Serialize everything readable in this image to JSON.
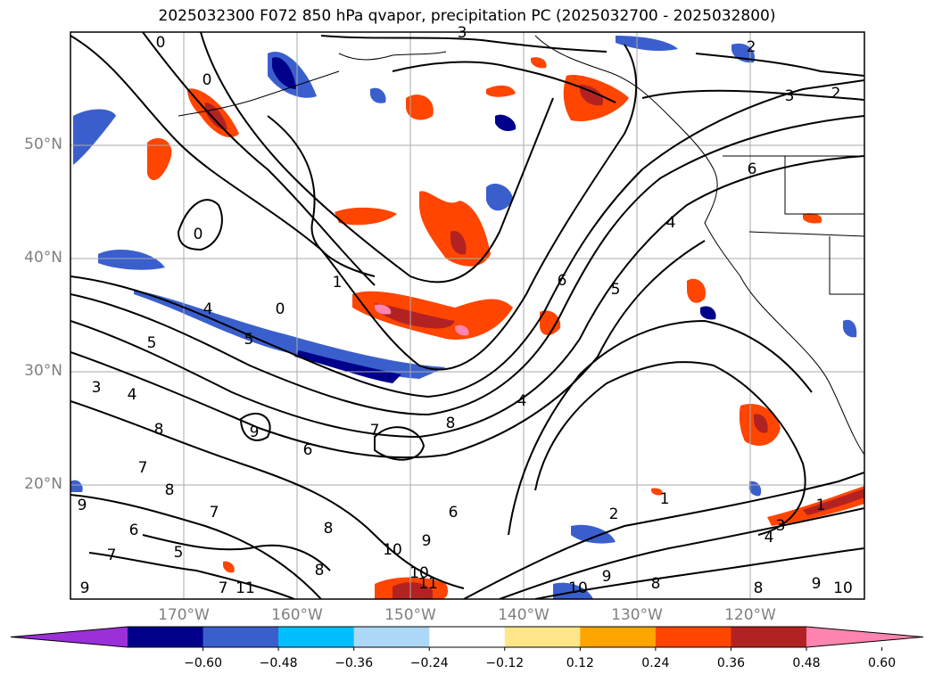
{
  "title": "2025032300 F072 850 hPa qvapor, precipitation PC (2025032700 - 2025032800)",
  "lat_labels": [
    "50°N",
    "40°N",
    "30°N",
    "20°N"
  ],
  "lon_labels": [
    "170°W",
    "160°W",
    "150°W",
    "140°W",
    "130°W",
    "120°W"
  ],
  "colorbar": {
    "ticks": [
      "−0.60",
      "−0.48",
      "−0.36",
      "−0.24",
      "−0.12",
      "0.12",
      "0.24",
      "0.36",
      "0.48",
      "0.60"
    ],
    "colors": [
      "#9b30d9",
      "#00008b",
      "#3a5fcd",
      "#00bfff",
      "#add8f7",
      "#ffffff",
      "#ffe68a",
      "#ffa500",
      "#ff4500",
      "#b22222",
      "#ff85b0"
    ]
  },
  "contour_labels": [
    "3",
    "2",
    "3",
    "2",
    "0",
    "0",
    "8",
    "4",
    "6",
    "4",
    "0",
    "1",
    "0",
    "6",
    "5",
    "4",
    "5",
    "5",
    "3",
    "4",
    "7",
    "8",
    "9",
    "7",
    "8",
    "6",
    "9",
    "7",
    "6",
    "8",
    "8",
    "5",
    "7",
    "10",
    "9",
    "10",
    "11",
    "11",
    "10",
    "9",
    "8",
    "6",
    "2",
    "1",
    "1",
    "3",
    "4",
    "8",
    "9",
    "10",
    "9",
    "7"
  ]
}
